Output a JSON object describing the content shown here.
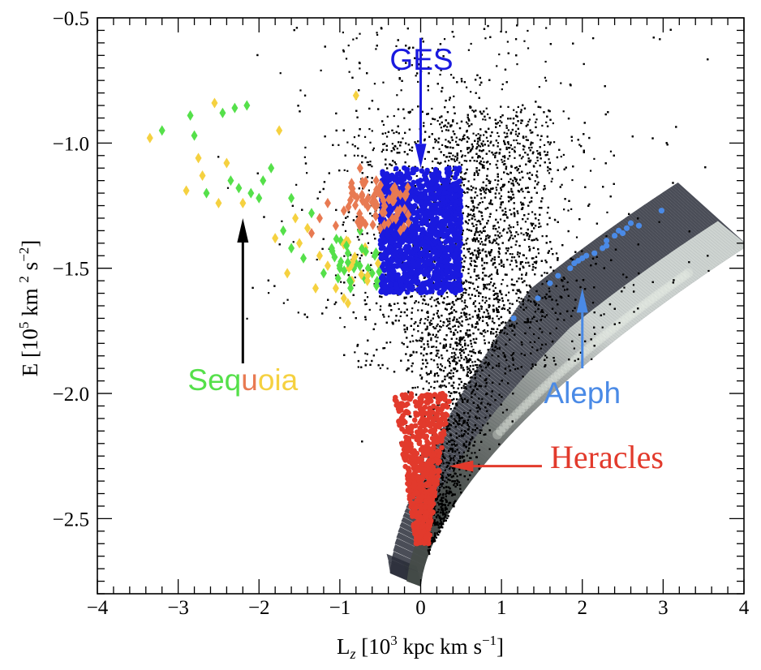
{
  "chart_data": {
    "type": "scatter",
    "xlabel": "L",
    "xlabel_sub": "z",
    "xlabel_units": " [10",
    "xlabel_exp": "3",
    "xlabel_units2": " kpc km s",
    "xlabel_exp2": "−1",
    "xlabel_close": "]",
    "ylabel": "E [10",
    "ylabel_exp": "5",
    "ylabel_units": " km ",
    "ylabel_exp2": "2",
    "ylabel_units2": " s",
    "ylabel_exp3": "−2",
    "ylabel_close": "]",
    "xlim": [
      -4,
      4
    ],
    "ylim": [
      -2.8,
      -0.5
    ],
    "x_ticks": [
      -4,
      -3,
      -2,
      -1,
      0,
      1,
      2,
      3,
      4
    ],
    "x_tick_labels": [
      "−4",
      "−3",
      "−2",
      "−1",
      "0",
      "1",
      "2",
      "3",
      "4"
    ],
    "y_ticks": [
      -2.5,
      -2.0,
      -1.5,
      -1.0,
      -0.5
    ],
    "y_tick_labels": [
      "−2.5",
      "−2.0",
      "−1.5",
      "−1.0",
      "−0.5"
    ],
    "grid": false,
    "background_density": "grayscale density of halo stars along the prograde circular-orbit envelope",
    "series": [
      {
        "name": "GES",
        "color": "#1a1adf",
        "marker": "circle",
        "region": {
          "x": [
            -0.5,
            0.5
          ],
          "y": [
            -1.6,
            -1.1
          ]
        }
      },
      {
        "name": "Heracles",
        "color": "#e23a2c",
        "marker": "circle",
        "region": {
          "x": [
            -0.35,
            0.3
          ],
          "y": [
            -2.6,
            -2.0
          ]
        }
      },
      {
        "name": "Aleph",
        "color": "#4a8ae6",
        "marker": "circle",
        "points": [
          [
            1.15,
            -1.7
          ],
          [
            1.45,
            -1.62
          ],
          [
            1.7,
            -1.53
          ],
          [
            1.85,
            -1.5
          ],
          [
            1.95,
            -1.47
          ],
          [
            2.05,
            -1.45
          ],
          [
            2.15,
            -1.44
          ],
          [
            2.25,
            -1.42
          ],
          [
            2.3,
            -1.39
          ],
          [
            2.4,
            -1.37
          ],
          [
            2.45,
            -1.35
          ],
          [
            2.5,
            -1.36
          ],
          [
            2.55,
            -1.34
          ],
          [
            2.6,
            -1.32
          ],
          [
            2.3,
            -1.41
          ],
          [
            2.0,
            -1.46
          ],
          [
            1.9,
            -1.48
          ],
          [
            1.6,
            -1.56
          ],
          [
            2.98,
            -1.27
          ],
          [
            2.7,
            -1.33
          ]
        ]
      },
      {
        "name": "Sequoia",
        "color_variants": [
          "#55e04a",
          "#f5d140",
          "#e87a52"
        ],
        "marker": "diamond",
        "points": [
          [
            -3.35,
            -0.98,
            "y"
          ],
          [
            -3.2,
            -0.95,
            "g"
          ],
          [
            -2.9,
            -1.19,
            "y"
          ],
          [
            -2.85,
            -0.89,
            "g"
          ],
          [
            -2.8,
            -0.97,
            "g"
          ],
          [
            -2.75,
            -1.06,
            "y"
          ],
          [
            -2.7,
            -1.13,
            "y"
          ],
          [
            -2.65,
            -1.2,
            "g"
          ],
          [
            -2.55,
            -0.84,
            "y"
          ],
          [
            -2.5,
            -1.24,
            "y"
          ],
          [
            -2.45,
            -0.88,
            "g"
          ],
          [
            -2.4,
            -1.08,
            "y"
          ],
          [
            -2.35,
            -1.15,
            "g"
          ],
          [
            -2.3,
            -0.86,
            "g"
          ],
          [
            -2.2,
            -1.24,
            "y"
          ],
          [
            -2.15,
            -0.85,
            "g"
          ],
          [
            -2.1,
            -1.2,
            "g"
          ],
          [
            -2.0,
            -1.22,
            "g"
          ],
          [
            -1.95,
            -1.15,
            "g"
          ],
          [
            -1.85,
            -1.1,
            "g"
          ],
          [
            -1.8,
            -1.38,
            "y"
          ],
          [
            -1.75,
            -0.95,
            "y"
          ],
          [
            -1.7,
            -1.35,
            "g"
          ],
          [
            -1.65,
            -1.52,
            "y"
          ],
          [
            -1.6,
            -1.22,
            "g"
          ],
          [
            -1.55,
            -1.3,
            "y"
          ],
          [
            -1.5,
            -1.4,
            "y"
          ],
          [
            -1.45,
            -1.46,
            "g"
          ],
          [
            -1.4,
            -1.34,
            "y"
          ],
          [
            -1.35,
            -1.28,
            "g"
          ],
          [
            -1.3,
            -1.58,
            "y"
          ],
          [
            -1.25,
            -1.45,
            "y"
          ],
          [
            -1.2,
            -1.52,
            "g"
          ],
          [
            -1.15,
            -1.49,
            "y"
          ],
          [
            -1.1,
            -1.42,
            "g"
          ],
          [
            -1.05,
            -1.58,
            "y"
          ],
          [
            -1.0,
            -1.5,
            "g"
          ],
          [
            -0.95,
            -1.62,
            "y"
          ],
          [
            -0.9,
            -1.44,
            "g"
          ],
          [
            -0.85,
            -1.55,
            "y"
          ],
          [
            -0.8,
            -1.48,
            "g"
          ],
          [
            -0.75,
            -1.35,
            "g"
          ],
          [
            -0.7,
            -1.43,
            "y"
          ],
          [
            -0.65,
            -1.5,
            "g"
          ],
          [
            -0.6,
            -1.52,
            "g"
          ],
          [
            -1.25,
            -1.3,
            "o"
          ],
          [
            -1.15,
            -1.24,
            "o"
          ],
          [
            -1.05,
            -1.33,
            "o"
          ],
          [
            -0.95,
            -1.27,
            "o"
          ],
          [
            -0.85,
            -1.2,
            "o"
          ],
          [
            -0.75,
            -1.3,
            "o"
          ],
          [
            -0.65,
            -1.22,
            "o"
          ],
          [
            -0.55,
            -1.15,
            "o"
          ],
          [
            -0.45,
            -1.25,
            "o"
          ],
          [
            -0.35,
            -1.3,
            "o"
          ],
          [
            -0.25,
            -1.35,
            "o"
          ],
          [
            -0.75,
            -1.1,
            "o"
          ],
          [
            -1.35,
            -1.36,
            "o"
          ],
          [
            -0.8,
            -0.81,
            "y"
          ],
          [
            -0.9,
            -1.64,
            "y"
          ],
          [
            -1.6,
            -1.42,
            "g"
          ],
          [
            -2.25,
            -1.18,
            "g"
          ]
        ]
      }
    ],
    "annotations": [
      {
        "text": "GES",
        "color": "#1a1adf",
        "arrow_from": [
          0.0,
          -0.58
        ],
        "arrow_to": [
          0.0,
          -1.1
        ]
      },
      {
        "text_parts": [
          {
            "text": "Seq",
            "color": "#55e04a"
          },
          {
            "text": "u",
            "color": "#e87a52"
          },
          {
            "text": "oia",
            "color": "#f5d140"
          }
        ],
        "arrow_from": [
          -2.2,
          -1.88
        ],
        "arrow_to": [
          -2.2,
          -1.3
        ],
        "arrow_color": "#000000"
      },
      {
        "text": "Aleph",
        "color": "#4a8ae6",
        "arrow_from": [
          2.0,
          -1.9
        ],
        "arrow_to": [
          2.0,
          -1.58
        ]
      },
      {
        "text": "Heracles",
        "color": "#e23a2c",
        "arrow_from": [
          1.5,
          -2.29
        ],
        "arrow_to": [
          0.35,
          -2.29
        ]
      }
    ]
  }
}
